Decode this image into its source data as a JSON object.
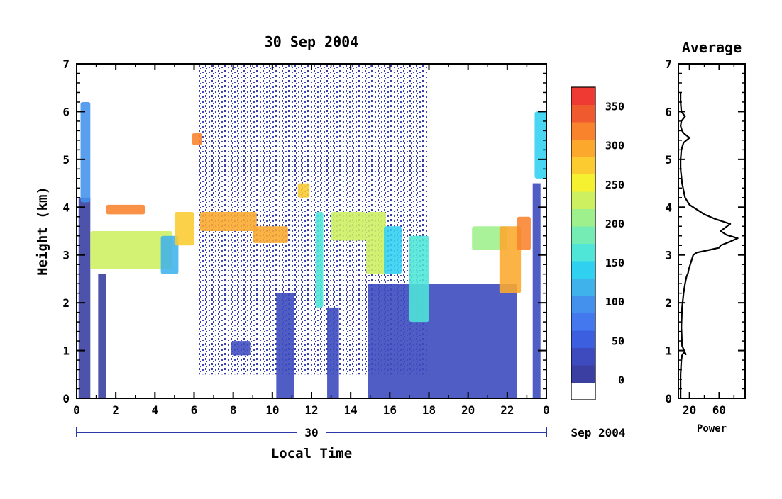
{
  "chart_data": [
    {
      "type": "heatmap",
      "title": "30 Sep 2004",
      "xlabel": "Local Time",
      "ylabel": "Height (km)",
      "xlim": [
        0,
        24
      ],
      "ylim": [
        0,
        7
      ],
      "xticks": [
        "0",
        "2",
        "4",
        "6",
        "8",
        "10",
        "12",
        "14",
        "16",
        "18",
        "20",
        "22",
        "0"
      ],
      "yticks": [
        "0",
        "1",
        "2",
        "3",
        "4",
        "5",
        "6",
        "7"
      ],
      "date_axis": {
        "day": "30",
        "month_year": "Sep 2004"
      },
      "colorbar": {
        "ticks": [
          "0",
          "50",
          "100",
          "150",
          "200",
          "250",
          "300",
          "350"
        ],
        "tick_values": [
          0,
          50,
          100,
          150,
          200,
          250,
          300,
          350
        ],
        "range": [
          -25,
          375
        ],
        "colors": [
          "#ffffff",
          "#3a3fa1",
          "#3d4bbf",
          "#3c5fe0",
          "#4478ee",
          "#4391ec",
          "#3fb2ec",
          "#2fd0f0",
          "#4fe6d8",
          "#74ecb4",
          "#9ef08c",
          "#cdf060",
          "#f5f030",
          "#fbcb30",
          "#fca82c",
          "#f8832c",
          "#ef5a2e",
          "#ef3a34"
        ]
      },
      "cloud_layers": [
        {
          "x0": 0.2,
          "x1": 0.7,
          "y0": 4.1,
          "y1": 6.2,
          "value": 90
        },
        {
          "x0": 0.7,
          "x1": 4.9,
          "y0": 2.7,
          "y1": 3.5,
          "value": 240
        },
        {
          "x0": 1.5,
          "x1": 3.5,
          "y0": 3.85,
          "y1": 4.05,
          "value": 330
        },
        {
          "x0": 4.3,
          "x1": 5.2,
          "y0": 2.6,
          "y1": 3.4,
          "value": 130
        },
        {
          "x0": 5.0,
          "x1": 6.0,
          "y0": 3.2,
          "y1": 3.9,
          "value": 280
        },
        {
          "x0": 5.9,
          "x1": 6.4,
          "y0": 5.3,
          "y1": 5.55,
          "value": 320
        },
        {
          "x0": 6.3,
          "x1": 9.2,
          "y0": 3.5,
          "y1": 3.9,
          "value": 290
        },
        {
          "x0": 9.0,
          "x1": 10.8,
          "y0": 3.25,
          "y1": 3.6,
          "value": 300
        },
        {
          "x0": 11.3,
          "x1": 11.9,
          "y0": 4.2,
          "y1": 4.5,
          "value": 280
        },
        {
          "x0": 12.2,
          "x1": 12.6,
          "y0": 1.9,
          "y1": 3.9,
          "value": 170
        },
        {
          "x0": 13.0,
          "x1": 14.8,
          "y0": 3.3,
          "y1": 3.9,
          "value": 220
        },
        {
          "x0": 14.8,
          "x1": 15.8,
          "y0": 2.6,
          "y1": 3.9,
          "value": 230
        },
        {
          "x0": 15.7,
          "x1": 16.6,
          "y0": 2.6,
          "y1": 3.6,
          "value": 150
        },
        {
          "x0": 17.0,
          "x1": 18.0,
          "y0": 1.6,
          "y1": 3.4,
          "value": 160
        },
        {
          "x0": 20.2,
          "x1": 22.0,
          "y0": 3.1,
          "y1": 3.6,
          "value": 200
        },
        {
          "x0": 21.6,
          "x1": 22.7,
          "y0": 2.2,
          "y1": 3.6,
          "value": 300
        },
        {
          "x0": 22.5,
          "x1": 23.2,
          "y0": 3.1,
          "y1": 3.8,
          "value": 320
        },
        {
          "x0": 23.4,
          "x1": 24.0,
          "y0": 4.6,
          "y1": 6.0,
          "value": 140
        },
        {
          "x0": 7.9,
          "x1": 8.9,
          "y0": 0.9,
          "y1": 1.2,
          "value": 40
        }
      ],
      "low_echo_columns": [
        {
          "x0": 0.1,
          "x1": 0.7,
          "y0": 0,
          "y1": 4.2,
          "value": 15
        },
        {
          "x0": 1.1,
          "x1": 1.5,
          "y0": 0,
          "y1": 2.6,
          "value": 15
        },
        {
          "x0": 10.2,
          "x1": 11.1,
          "y0": 0,
          "y1": 2.2,
          "value": 20
        },
        {
          "x0": 12.8,
          "x1": 13.4,
          "y0": 0,
          "y1": 1.9,
          "value": 20
        },
        {
          "x0": 14.9,
          "x1": 22.5,
          "y0": 0,
          "y1": 2.4,
          "value": 25
        },
        {
          "x0": 23.3,
          "x1": 23.7,
          "y0": 0,
          "y1": 4.5,
          "value": 20
        }
      ],
      "noise_region": {
        "x0": 6.2,
        "x1": 18.0,
        "y0": 0.5,
        "y1": 7.0
      }
    },
    {
      "type": "line",
      "title": "Average",
      "xlabel": "Power",
      "xticks": [
        "20",
        "60"
      ],
      "yticks": [
        "0",
        "1",
        "2",
        "3",
        "4",
        "5",
        "6",
        "7"
      ],
      "xlim": [
        5,
        95
      ],
      "ylim": [
        0,
        7
      ],
      "x": [
        8,
        8,
        9,
        10,
        12,
        15,
        10,
        9,
        10,
        12,
        14,
        16,
        18,
        19,
        21,
        23,
        25,
        30,
        45,
        60,
        62,
        75,
        85,
        70,
        62,
        75,
        55,
        40,
        30,
        20,
        14,
        10,
        8,
        8,
        9,
        12,
        20,
        12,
        10,
        8,
        9,
        14,
        9,
        8,
        8
      ],
      "y": [
        0,
        0.5,
        0.8,
        0.9,
        0.95,
        0.92,
        1.1,
        1.5,
        1.9,
        2.2,
        2.4,
        2.55,
        2.62,
        2.7,
        2.8,
        2.9,
        3.0,
        3.05,
        3.1,
        3.15,
        3.2,
        3.28,
        3.35,
        3.42,
        3.5,
        3.65,
        3.75,
        3.85,
        3.95,
        4.05,
        4.2,
        4.5,
        4.8,
        5.0,
        5.2,
        5.35,
        5.45,
        5.55,
        5.6,
        5.7,
        5.8,
        5.9,
        6.0,
        6.2,
        6.4
      ]
    }
  ]
}
